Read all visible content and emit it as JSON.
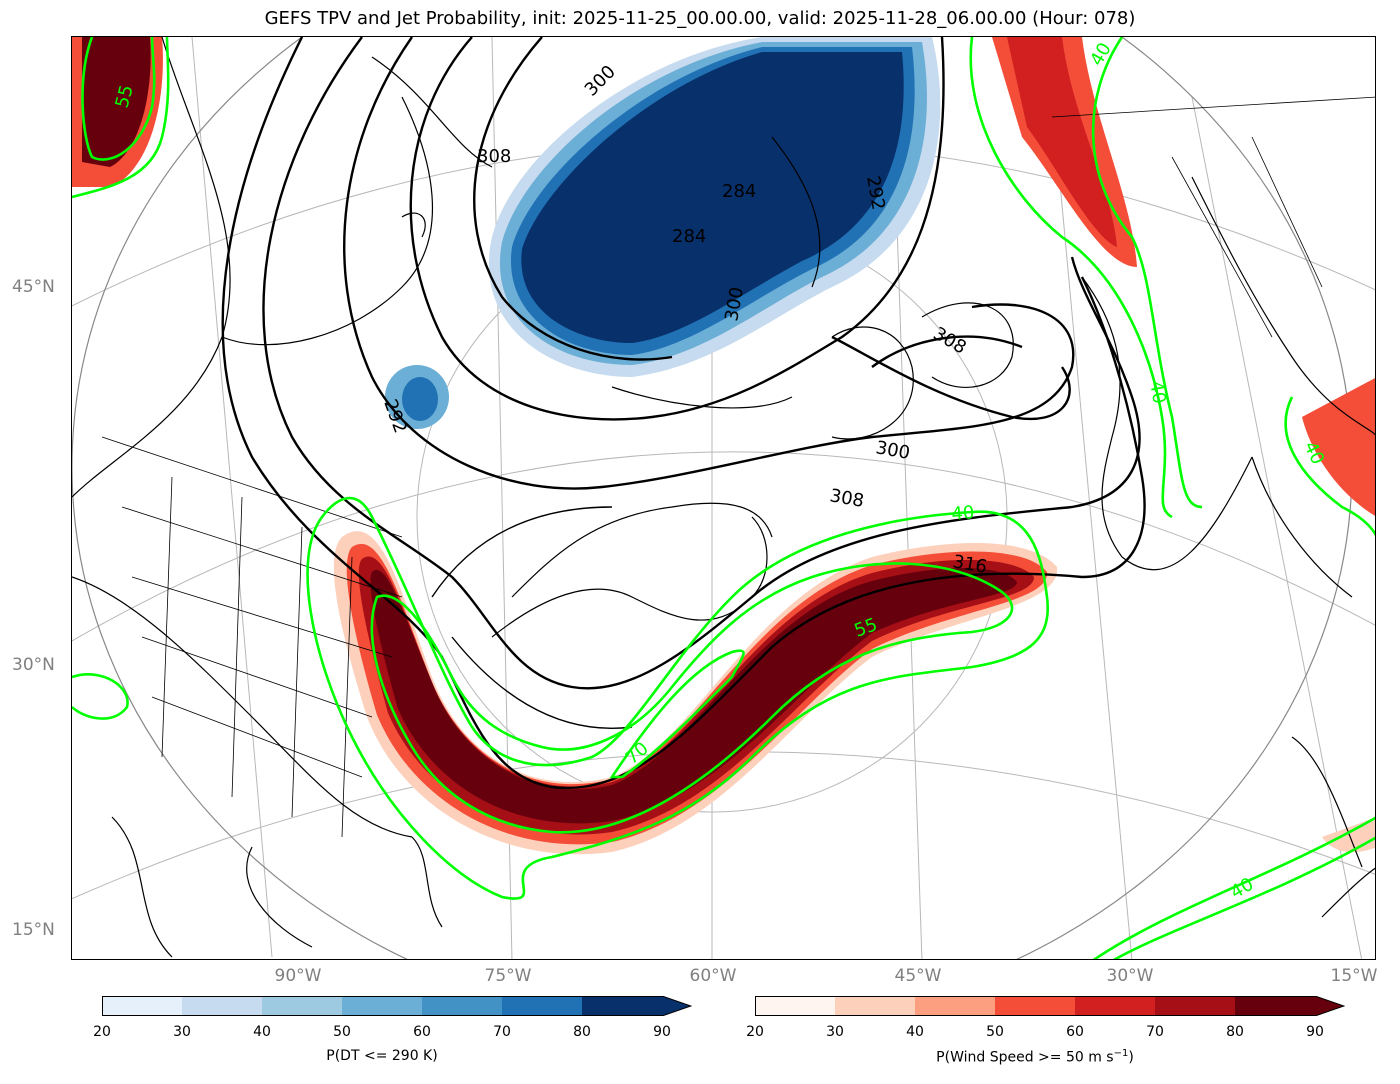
{
  "figure": {
    "title": "GEFS TPV and Jet Probability, init: 2025-11-25_00.00.00, valid: 2025-11-28_06.00.00 (Hour: 078)"
  },
  "axes": {
    "lat_labels": [
      "45°N",
      "30°N",
      "15°N"
    ],
    "lon_labels": [
      "90°W",
      "75°W",
      "60°W",
      "45°W",
      "30°W",
      "15°W"
    ]
  },
  "contours": {
    "theta_labels": [
      "300",
      "308",
      "284",
      "284",
      "292",
      "300",
      "308",
      "292",
      "300",
      "308",
      "316"
    ],
    "jet_labels": [
      "55",
      "40",
      "40",
      "40",
      "55",
      "70",
      "40"
    ]
  },
  "colorbars": {
    "tpv": {
      "label": "P(DT <= 290 K)",
      "ticks": [
        "20",
        "30",
        "40",
        "50",
        "60",
        "70",
        "80",
        "90"
      ],
      "colors": [
        "#e6f0fa",
        "#c6dbef",
        "#9ecae1",
        "#6baed6",
        "#4292c6",
        "#2171b5",
        "#08306b"
      ]
    },
    "jet": {
      "label": "P(Wind Speed >= 50 m s",
      "label_sup": "−1",
      "label_end": ")",
      "ticks": [
        "20",
        "30",
        "40",
        "50",
        "60",
        "70",
        "80",
        "90"
      ],
      "colors": [
        "#fff5f0",
        "#fdd0bc",
        "#fc9f81",
        "#f44d38",
        "#d21f20",
        "#a50f15",
        "#67000d"
      ]
    }
  }
}
